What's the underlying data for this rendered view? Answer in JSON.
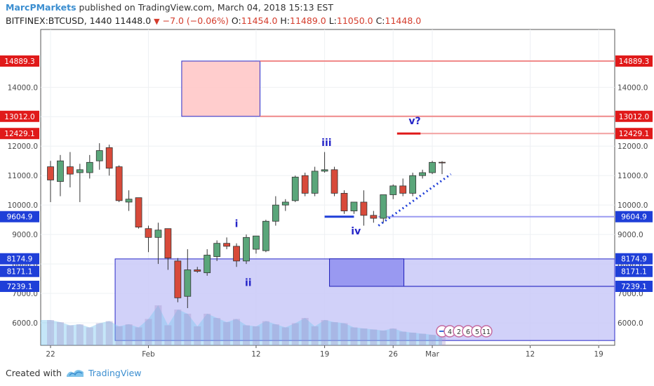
{
  "header": {
    "author": "MarcPMarkets",
    "published_text": " published on TradingView.com, March 04, 2018 15:13 EST",
    "symbol": "BITFINEX:BTCUSD, 1440",
    "last": "11448.0",
    "arrow": "▼",
    "change": "−7.0 (−0.06%)",
    "open_label": "O:",
    "open": "11454.0",
    "high_label": "H:",
    "high": "11489.0",
    "low_label": "L:",
    "low": "11050.0",
    "close_label": "C:",
    "close": "11448.0"
  },
  "footer": {
    "created_with": "Created with",
    "brand": "TradingView"
  },
  "colors": {
    "up": "#5aa67a",
    "down": "#d84a3a",
    "accent_blue": "#2525c8",
    "price_tag": "#e01a1a",
    "blue_tag": "#1f3fd8"
  },
  "chart_data": {
    "type": "candlestick",
    "ylim": [
      5400,
      15700
    ],
    "y_ticks": [
      6000,
      7000,
      8000,
      9000,
      10000,
      11000,
      12000,
      13000,
      14000
    ],
    "y_tick_labels": [
      "6000.0",
      "7000.0",
      "8000.0",
      "9000.0",
      "10000.0",
      "11000.0",
      "12000.0",
      "13000.0",
      "14000.0"
    ],
    "x_ticks": [
      {
        "label": "22",
        "i": 0
      },
      {
        "label": "Feb",
        "i": 10
      },
      {
        "label": "12",
        "i": 21
      },
      {
        "label": "19",
        "i": 28
      },
      {
        "label": "26",
        "i": 35
      },
      {
        "label": "Mar",
        "i": 39
      },
      {
        "label": "12",
        "i": 49
      },
      {
        "label": "19",
        "i": 56
      }
    ],
    "candles": [
      {
        "o": 11300,
        "h": 11500,
        "l": 10100,
        "c": 10850
      },
      {
        "o": 10800,
        "h": 11700,
        "l": 10300,
        "c": 11500
      },
      {
        "o": 11300,
        "h": 11800,
        "l": 10600,
        "c": 11050
      },
      {
        "o": 11100,
        "h": 11400,
        "l": 10100,
        "c": 11200
      },
      {
        "o": 11100,
        "h": 11700,
        "l": 10900,
        "c": 11450
      },
      {
        "o": 11500,
        "h": 12100,
        "l": 11200,
        "c": 11850
      },
      {
        "o": 11950,
        "h": 12050,
        "l": 11000,
        "c": 11250
      },
      {
        "o": 11300,
        "h": 11350,
        "l": 10100,
        "c": 10150
      },
      {
        "o": 10100,
        "h": 10500,
        "l": 9800,
        "c": 10200
      },
      {
        "o": 10250,
        "h": 10250,
        "l": 9200,
        "c": 9250
      },
      {
        "o": 9200,
        "h": 9300,
        "l": 8400,
        "c": 8900
      },
      {
        "o": 8900,
        "h": 9400,
        "l": 8000,
        "c": 9150
      },
      {
        "o": 9200,
        "h": 9200,
        "l": 7800,
        "c": 8200
      },
      {
        "o": 8100,
        "h": 8200,
        "l": 6700,
        "c": 6850
      },
      {
        "o": 6900,
        "h": 8500,
        "l": 6500,
        "c": 7800
      },
      {
        "o": 7800,
        "h": 7900,
        "l": 7700,
        "c": 7750
      },
      {
        "o": 7700,
        "h": 8500,
        "l": 7600,
        "c": 8300
      },
      {
        "o": 8250,
        "h": 8800,
        "l": 8100,
        "c": 8700
      },
      {
        "o": 8700,
        "h": 8900,
        "l": 8500,
        "c": 8600
      },
      {
        "o": 8600,
        "h": 8700,
        "l": 7900,
        "c": 8100
      },
      {
        "o": 8100,
        "h": 9000,
        "l": 8000,
        "c": 8900
      },
      {
        "o": 8500,
        "h": 8950,
        "l": 8350,
        "c": 8950
      },
      {
        "o": 8450,
        "h": 9500,
        "l": 8400,
        "c": 9450
      },
      {
        "o": 9450,
        "h": 10300,
        "l": 9300,
        "c": 10000
      },
      {
        "o": 10000,
        "h": 10200,
        "l": 9800,
        "c": 10100
      },
      {
        "o": 10150,
        "h": 11000,
        "l": 10100,
        "c": 10950
      },
      {
        "o": 11000,
        "h": 11100,
        "l": 10300,
        "c": 10400
      },
      {
        "o": 10400,
        "h": 11300,
        "l": 10300,
        "c": 11150
      },
      {
        "o": 11150,
        "h": 11800,
        "l": 11100,
        "c": 11200
      },
      {
        "o": 11200,
        "h": 11300,
        "l": 10300,
        "c": 10400
      },
      {
        "o": 10400,
        "h": 10500,
        "l": 9700,
        "c": 9800
      },
      {
        "o": 9800,
        "h": 10100,
        "l": 9700,
        "c": 10100
      },
      {
        "o": 10100,
        "h": 10500,
        "l": 9300,
        "c": 9650
      },
      {
        "o": 9650,
        "h": 9800,
        "l": 9400,
        "c": 9550
      },
      {
        "o": 9550,
        "h": 10300,
        "l": 9400,
        "c": 10350
      },
      {
        "o": 10350,
        "h": 10700,
        "l": 10200,
        "c": 10650
      },
      {
        "o": 10650,
        "h": 10900,
        "l": 10300,
        "c": 10400
      },
      {
        "o": 10400,
        "h": 11100,
        "l": 10300,
        "c": 11000
      },
      {
        "o": 11000,
        "h": 11200,
        "l": 10900,
        "c": 11100
      },
      {
        "o": 11100,
        "h": 11500,
        "l": 11050,
        "c": 11450
      },
      {
        "o": 11454,
        "h": 11489,
        "l": 11050,
        "c": 11448
      }
    ],
    "volume_series": [
      2400,
      2200,
      1900,
      2000,
      1700,
      2100,
      2300,
      1800,
      2000,
      1700,
      2500,
      3800,
      1900,
      3400,
      3000,
      1800,
      3000,
      2600,
      2200,
      2500,
      1900,
      1800,
      2300,
      2000,
      1700,
      2100,
      2600,
      1800,
      2400,
      2200,
      2100,
      1700,
      1600,
      1500,
      1400,
      1600,
      1300,
      1200,
      1100,
      1000,
      800
    ],
    "zones": [
      {
        "name": "resistance-zone",
        "y_top": 14889.3,
        "y_bottom": 13012.0,
        "x_start": 13.4,
        "x_end": 21.4
      },
      {
        "name": "support-zone",
        "y_top": 8171.1,
        "y_bottom": 5400,
        "x_start": 6.6,
        "x_end": 58.9
      },
      {
        "name": "inner-support-zone",
        "y_top": 8174.9,
        "y_bottom": 7239.1,
        "x_start": 28.5,
        "x_end": 36.1
      }
    ],
    "levels": [
      {
        "value": 14889.3,
        "label": "14889.3",
        "tag_color": "#e01a1a"
      },
      {
        "value": 13012.0,
        "label": "13012.0",
        "tag_color": "#e01a1a"
      },
      {
        "value": 12429.1,
        "label": "12429.1",
        "tag_color": "#e01a1a"
      },
      {
        "value": 9604.9,
        "label": "9604.9",
        "tag_color": "#1f3fd8"
      },
      {
        "value": 8171.1,
        "label": "8171.1",
        "tag_color": "#1f3fd8"
      },
      {
        "value": 8174.9,
        "label": "8174.9",
        "tag_color": "#1f3fd8"
      },
      {
        "value": 7239.1,
        "label": "7239.1",
        "tag_color": "#1f3fd8"
      }
    ],
    "annotations": [
      {
        "text": "i",
        "x": 19.0,
        "y": 9250
      },
      {
        "text": "ii",
        "x": 20.2,
        "y": 7250
      },
      {
        "text": "iii",
        "x": 28.2,
        "y": 12000
      },
      {
        "text": "iv",
        "x": 31.2,
        "y": 9000
      },
      {
        "text": "v?",
        "x": 37.2,
        "y": 12750
      }
    ],
    "event_badges": [
      "4",
      "2",
      "6",
      "5",
      "11"
    ]
  }
}
